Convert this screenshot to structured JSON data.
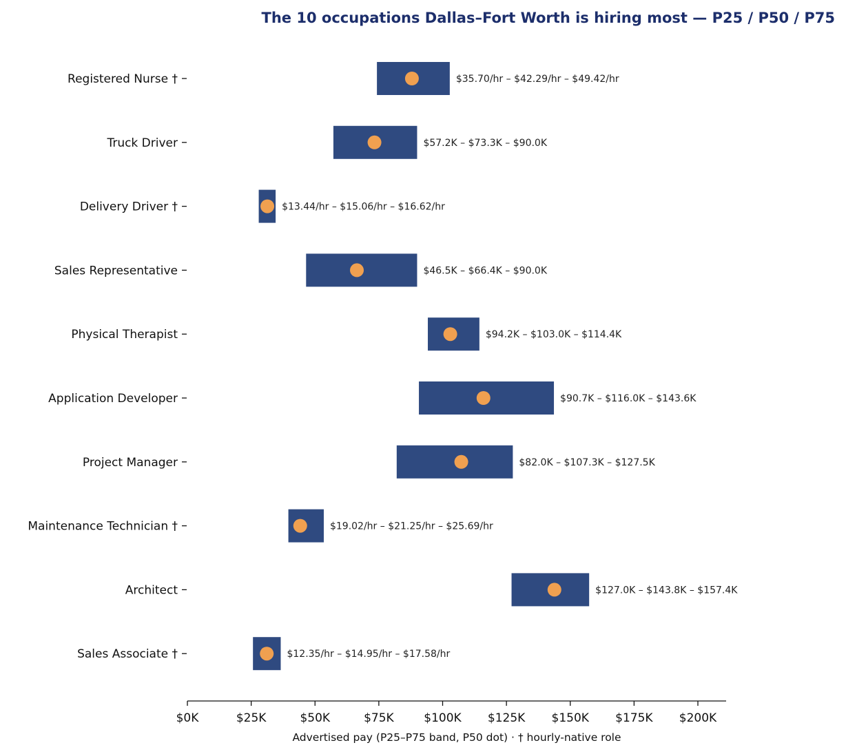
{
  "chart_data": {
    "type": "range-bar",
    "title": "The 10 occupations Dallas–Fort Worth is hiring most — P25 / P50 / P75",
    "xlabel": "Advertised pay (P25–P75 band, P50 dot) · † hourly-native role",
    "ylabel": "",
    "xlim": [
      0,
      211000
    ],
    "x_ticks": [
      0,
      25000,
      50000,
      75000,
      100000,
      125000,
      150000,
      175000,
      200000
    ],
    "x_tick_labels": [
      "$0K",
      "$25K",
      "$50K",
      "$75K",
      "$100K",
      "$125K",
      "$150K",
      "$175K",
      "$200K"
    ],
    "grid": false,
    "legend": "none",
    "colors": {
      "band": "#2f4a80",
      "median_dot": "#f0a050",
      "title": "#1c2e6b"
    },
    "rows": [
      {
        "category": "Registered Nurse †",
        "p25": 74256,
        "p50": 87963,
        "p75": 102794,
        "label": "$35.70/hr – $42.29/hr – $49.42/hr"
      },
      {
        "category": "Truck Driver",
        "p25": 57200,
        "p50": 73300,
        "p75": 90000,
        "label": "$57.2K – $73.3K – $90.0K"
      },
      {
        "category": "Delivery Driver †",
        "p25": 27955,
        "p50": 31325,
        "p75": 34570,
        "label": "$13.44/hr – $15.06/hr – $16.62/hr"
      },
      {
        "category": "Sales Representative",
        "p25": 46500,
        "p50": 66400,
        "p75": 90000,
        "label": "$46.5K – $66.4K – $90.0K"
      },
      {
        "category": "Physical Therapist",
        "p25": 94200,
        "p50": 103000,
        "p75": 114400,
        "label": "$94.2K – $103.0K – $114.4K"
      },
      {
        "category": "Application Developer",
        "p25": 90700,
        "p50": 116000,
        "p75": 143600,
        "label": "$90.7K – $116.0K – $143.6K"
      },
      {
        "category": "Project Manager",
        "p25": 82000,
        "p50": 107300,
        "p75": 127500,
        "label": "$82.0K – $107.3K – $127.5K"
      },
      {
        "category": "Maintenance Technician †",
        "p25": 39562,
        "p50": 44200,
        "p75": 53435,
        "label": "$19.02/hr – $21.25/hr – $25.69/hr"
      },
      {
        "category": "Architect",
        "p25": 127000,
        "p50": 143800,
        "p75": 157400,
        "label": "$127.0K – $143.8K – $157.4K"
      },
      {
        "category": "Sales Associate †",
        "p25": 25688,
        "p50": 31096,
        "p75": 36566,
        "label": "$12.35/hr – $14.95/hr – $17.58/hr"
      }
    ]
  }
}
